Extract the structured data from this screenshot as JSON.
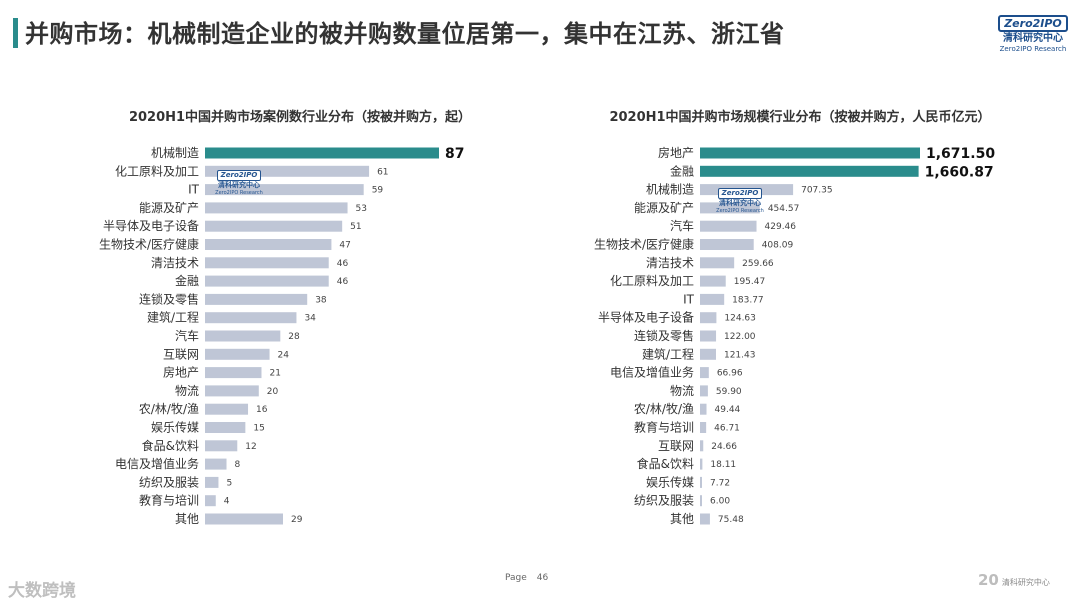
{
  "header": {
    "title": "并购市场：机械制造企业的被并购数量位居第一，集中在江苏、浙江省",
    "accent_color": "#2a8c8c"
  },
  "logo": {
    "badge": "Zero2IPO",
    "cn": "清科研究中心",
    "en": "Zero2IPO Research"
  },
  "colors": {
    "highlight_bar": "#2a8c8c",
    "normal_bar": "#bfc6d6"
  },
  "chart_data": [
    {
      "type": "bar",
      "orientation": "horizontal",
      "title": "2020H1中国并购市场案例数行业分布（按被并购方，起）",
      "categories": [
        "机械制造",
        "化工原料及加工",
        "IT",
        "能源及矿产",
        "半导体及电子设备",
        "生物技术/医疗健康",
        "清洁技术",
        "金融",
        "连锁及零售",
        "建筑/工程",
        "汽车",
        "互联网",
        "房地产",
        "物流",
        "农/林/牧/渔",
        "娱乐传媒",
        "食品&饮料",
        "电信及增值业务",
        "纺织及服装",
        "教育与培训",
        "其他"
      ],
      "values": [
        87,
        61,
        59,
        53,
        51,
        47,
        46,
        46,
        38,
        34,
        28,
        24,
        21,
        20,
        16,
        15,
        12,
        8,
        5,
        4,
        29
      ],
      "value_labels": [
        "87",
        "61",
        "59",
        "53",
        "51",
        "47",
        "46",
        "46",
        "38",
        "34",
        "28",
        "24",
        "21",
        "20",
        "16",
        "15",
        "12",
        "8",
        "5",
        "4",
        "29"
      ],
      "highlight_count": 1,
      "xlim": [
        0,
        87
      ]
    },
    {
      "type": "bar",
      "orientation": "horizontal",
      "title": "2020H1中国并购市场规模行业分布（按被并购方，人民币亿元）",
      "categories": [
        "房地产",
        "金融",
        "机械制造",
        "能源及矿产",
        "汽车",
        "生物技术/医疗健康",
        "清洁技术",
        "化工原料及加工",
        "IT",
        "半导体及电子设备",
        "连锁及零售",
        "建筑/工程",
        "电信及增值业务",
        "物流",
        "农/林/牧/渔",
        "教育与培训",
        "互联网",
        "食品&饮料",
        "娱乐传媒",
        "纺织及服装",
        "其他"
      ],
      "values": [
        1671.5,
        1660.87,
        707.35,
        454.57,
        429.46,
        408.09,
        259.66,
        195.47,
        183.77,
        124.63,
        122.0,
        121.43,
        66.96,
        59.9,
        49.44,
        46.71,
        24.66,
        18.11,
        7.72,
        6.0,
        75.48
      ],
      "value_labels": [
        "1,671.50",
        "1,660.87",
        "707.35",
        "454.57",
        "429.46",
        "408.09",
        "259.66",
        "195.47",
        "183.77",
        "124.63",
        "122.00",
        "121.43",
        "66.96",
        "59.90",
        "49.44",
        "46.71",
        "24.66",
        "18.11",
        "7.72",
        "6.00",
        "75.48"
      ],
      "highlight_count": 2,
      "xlim": [
        0,
        1671.5
      ]
    }
  ],
  "watermark": {
    "badge": "Zero2IPO",
    "cn": "清科研究中心",
    "en": "Zero2IPO Research"
  },
  "footer": {
    "page_label": "Page",
    "page_number": "46",
    "left_brand": "大数跨境",
    "right_mark": "20",
    "right_brand": "清科研究中心"
  }
}
